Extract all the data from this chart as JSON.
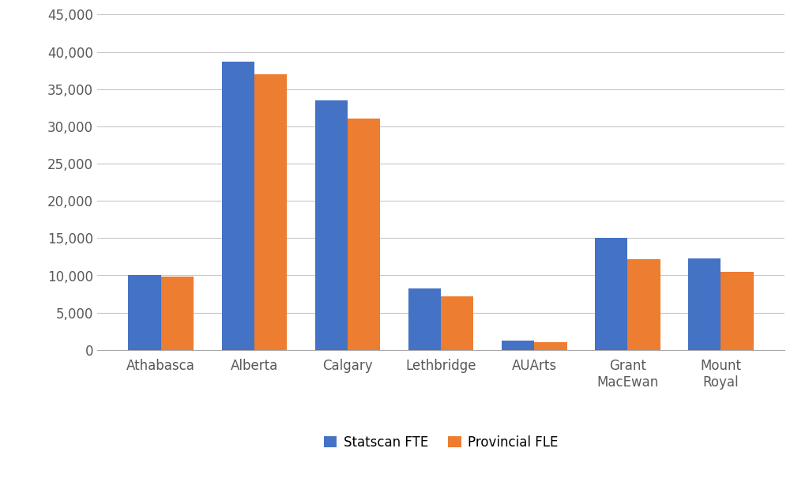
{
  "categories": [
    "Athabasca",
    "Alberta",
    "Calgary",
    "Lethbridge",
    "AUArts",
    "Grant\nMacEwan",
    "Mount\nRoyal"
  ],
  "statscan_fte": [
    10000,
    38700,
    33500,
    8300,
    1200,
    15000,
    12300
  ],
  "provincial_fle": [
    9800,
    37000,
    31000,
    7200,
    1050,
    12200,
    10500
  ],
  "statscan_color": "#4472C4",
  "provincial_color": "#ED7D31",
  "ylim": [
    0,
    45000
  ],
  "yticks": [
    0,
    5000,
    10000,
    15000,
    20000,
    25000,
    30000,
    35000,
    40000,
    45000
  ],
  "legend_labels": [
    "Statscan FTE",
    "Provincial FLE"
  ],
  "bar_width": 0.35,
  "background_color": "#FFFFFF",
  "grid_color": "#C8C8C8",
  "tick_fontsize": 12,
  "legend_fontsize": 12,
  "label_color": "#595959"
}
